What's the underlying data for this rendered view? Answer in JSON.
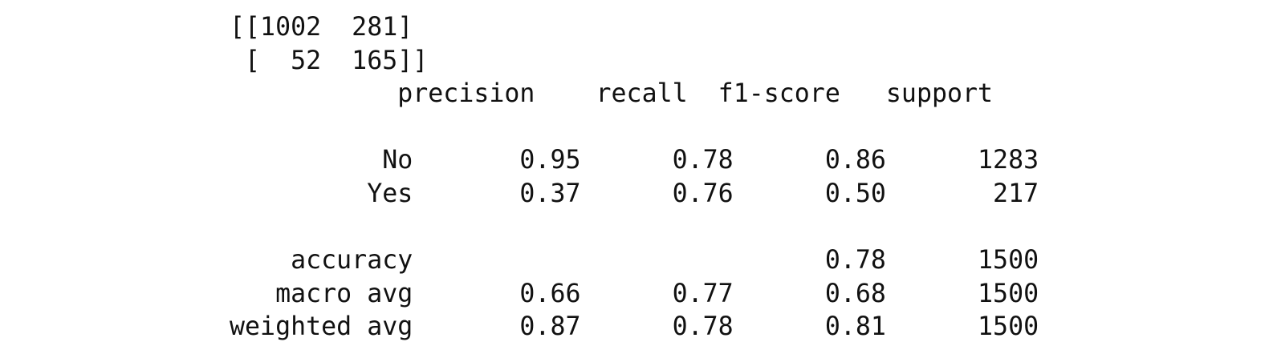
{
  "confusion_matrix": {
    "rows": [
      "[[1002  281]",
      " [  52  165]]"
    ]
  },
  "classification_report": {
    "header": "           precision    recall  f1-score   support",
    "rows": [
      "",
      "          No       0.95      0.78      0.86      1283",
      "         Yes       0.37      0.76      0.50       217",
      "",
      "    accuracy                           0.78      1500",
      "   macro avg       0.66      0.77      0.68      1500",
      "weighted avg       0.87      0.78      0.81      1500"
    ]
  }
}
